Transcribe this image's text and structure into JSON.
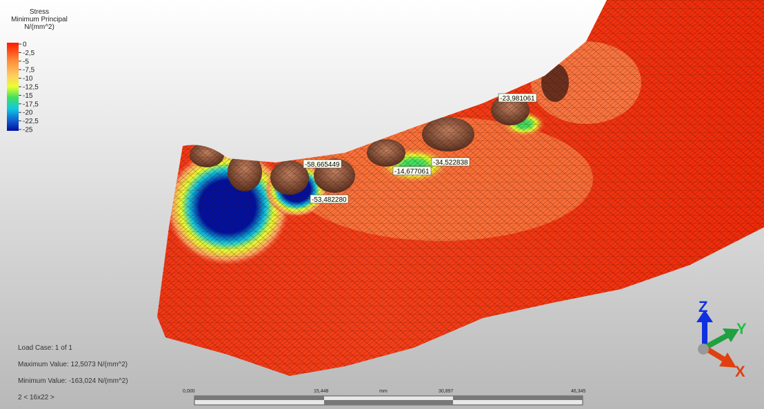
{
  "legend": {
    "title": [
      "Stress",
      "Minimum Principal",
      "N/(mm^2)"
    ],
    "ticks": [
      "0",
      "-2,5",
      "-5",
      "-7,5",
      "-10",
      "-12,5",
      "-15",
      "-17,5",
      "-20",
      "-22,5",
      "-25"
    ]
  },
  "probes": [
    "-23,981061",
    "-58,665449",
    "-14,677061",
    "-34,522838",
    "-53,482280"
  ],
  "info": {
    "load_case": "Load Case:  1 of 1",
    "max": "Maximum Value: 12,5073 N/(mm^2)",
    "min": "Minimum Value: -163,024 N/(mm^2)",
    "page": "2 < 16x22 >"
  },
  "scale_bar": {
    "labels": [
      "0,000",
      "15,448",
      "30,897",
      "46,345"
    ],
    "unit": "mm"
  },
  "triad": [
    "Z",
    "Y",
    "X"
  ]
}
